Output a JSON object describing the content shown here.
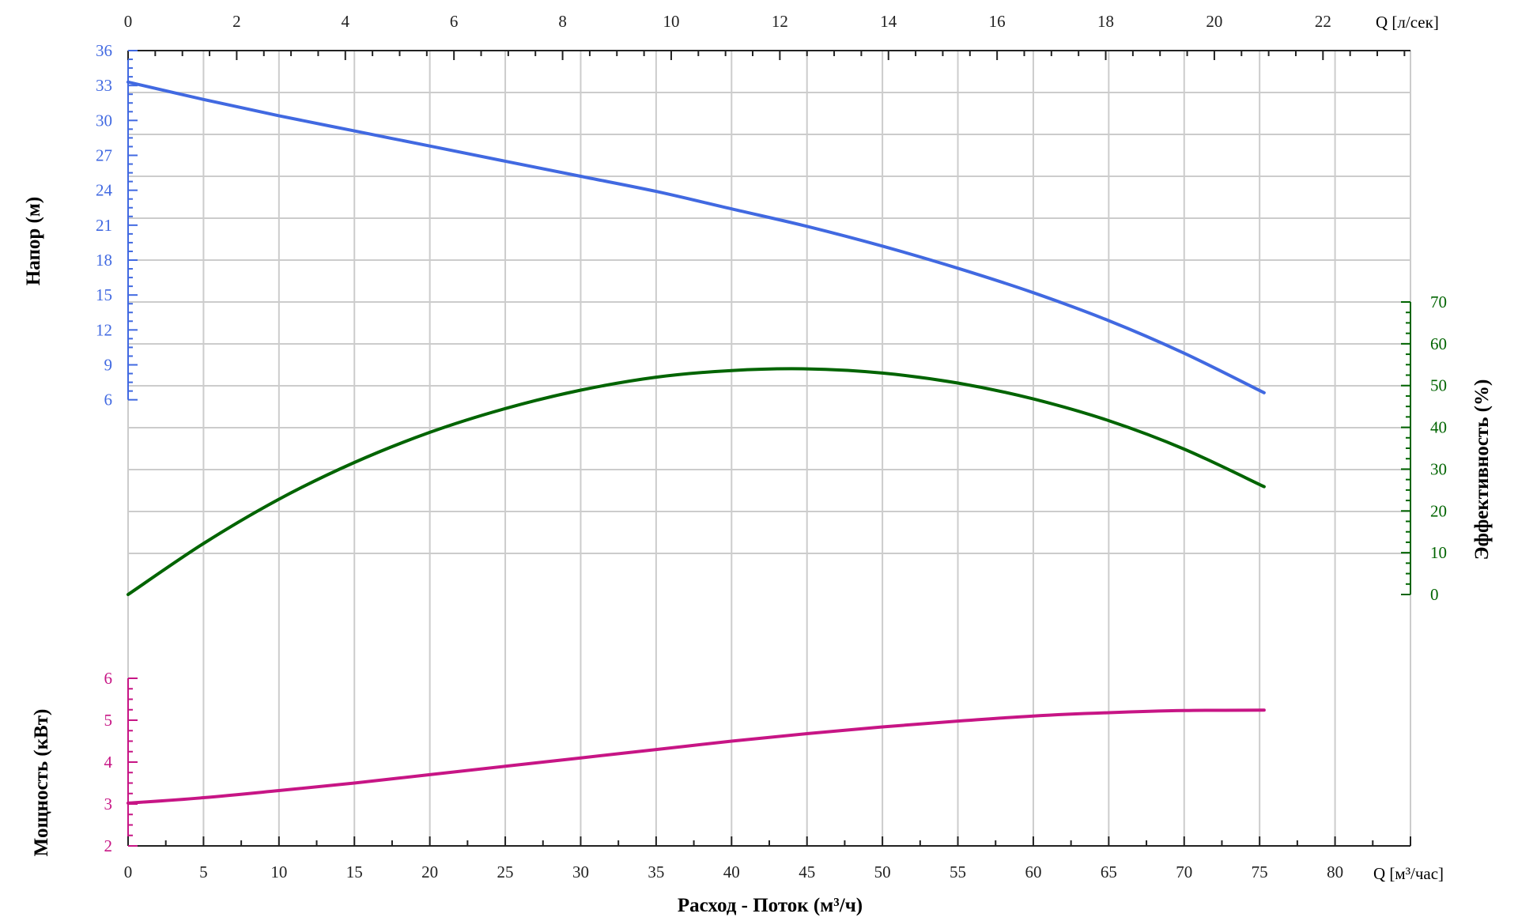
{
  "chart_data": {
    "type": "line",
    "xlabel": "Расход - Поток (м³/ч)",
    "x_range": [
      0,
      85
    ],
    "x_ticks": [
      0,
      5,
      10,
      15,
      20,
      25,
      30,
      35,
      40,
      45,
      50,
      55,
      60,
      65,
      70,
      75,
      80
    ],
    "x_unit_label": "Q [м³/час]",
    "x2_unit_label": "Q [л/сек]",
    "x2_ticks": [
      0,
      2,
      4,
      6,
      8,
      10,
      12,
      14,
      16,
      18,
      20,
      22
    ],
    "grid": true,
    "colors": {
      "head": "#4169E1",
      "efficiency": "#006400",
      "power": "#C71585",
      "grid": "#cccccc",
      "axis": "#222222"
    },
    "series": [
      {
        "key": "head",
        "ylabel": "Напор (м)",
        "y_range": [
          0,
          36
        ],
        "y_ticks": [
          6,
          9,
          12,
          15,
          18,
          21,
          24,
          27,
          30,
          33,
          36
        ],
        "x": [
          0,
          5,
          10,
          15,
          20,
          25,
          30,
          35,
          40,
          45,
          50,
          55,
          60,
          65,
          70,
          75.3
        ],
        "y": [
          33.3,
          31.8,
          30.4,
          29.1,
          27.8,
          26.5,
          25.2,
          23.9,
          22.4,
          20.9,
          19.2,
          17.3,
          15.2,
          12.8,
          10.0,
          6.6
        ]
      },
      {
        "key": "efficiency",
        "ylabel": "Эффективность (%)",
        "y_range": [
          0,
          70
        ],
        "y_ticks": [
          0,
          10,
          20,
          30,
          40,
          50,
          60,
          70
        ],
        "x": [
          0,
          5,
          10,
          15,
          20,
          25,
          30,
          35,
          40,
          45,
          50,
          55,
          60,
          65,
          70,
          75.3
        ],
        "y": [
          0,
          12.2,
          22.8,
          31.6,
          38.8,
          44.5,
          48.9,
          52.0,
          53.6,
          54.0,
          53.0,
          50.6,
          46.8,
          41.6,
          34.8,
          25.8
        ]
      },
      {
        "key": "power",
        "ylabel": "Мощность (кВт)",
        "y_range": [
          2,
          6
        ],
        "y_ticks": [
          2,
          3,
          4,
          5,
          6
        ],
        "x": [
          0,
          5,
          10,
          15,
          20,
          25,
          30,
          35,
          40,
          45,
          50,
          55,
          60,
          65,
          70,
          75.3
        ],
        "y": [
          3.02,
          3.15,
          3.32,
          3.5,
          3.7,
          3.9,
          4.1,
          4.3,
          4.5,
          4.68,
          4.84,
          4.98,
          5.1,
          5.18,
          5.23,
          5.24
        ]
      }
    ]
  }
}
